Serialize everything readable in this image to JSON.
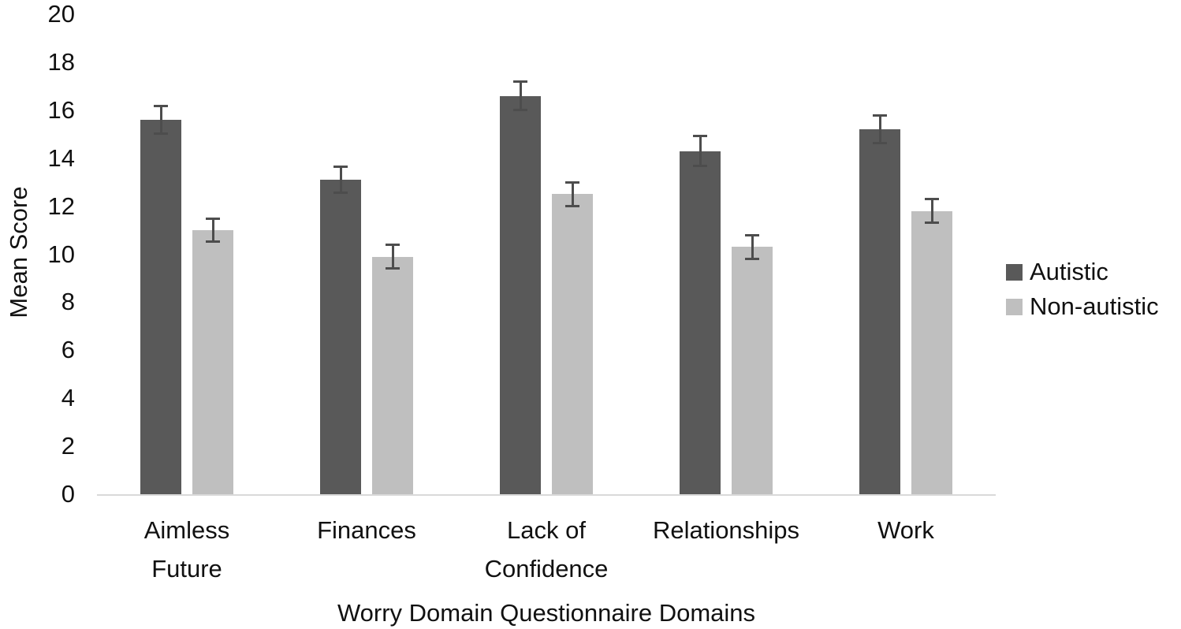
{
  "chart_data": {
    "type": "bar",
    "title": "",
    "xlabel": "Worry Domain Questionnaire Domains",
    "ylabel": "Mean Score",
    "ylim": [
      0,
      20
    ],
    "yticks": [
      0,
      2,
      4,
      6,
      8,
      10,
      12,
      14,
      16,
      18,
      20
    ],
    "grid": false,
    "legend_position": "right",
    "categories": [
      "Aimless Future",
      "Finances",
      "Lack of Confidence",
      "Relationships",
      "Work"
    ],
    "category_label_lines": [
      [
        "Aimless",
        "Future"
      ],
      [
        "Finances"
      ],
      [
        "Lack of",
        "Confidence"
      ],
      [
        "Relationships"
      ],
      [
        "Work"
      ]
    ],
    "series": [
      {
        "name": "Autistic",
        "color": "#595959",
        "values": [
          15.6,
          13.1,
          16.6,
          14.3,
          15.2
        ],
        "error_bars": [
          0.6,
          0.55,
          0.6,
          0.65,
          0.6
        ]
      },
      {
        "name": "Non-autistic",
        "color": "#bfbfbf",
        "values": [
          11.0,
          9.9,
          12.5,
          10.3,
          11.8
        ],
        "error_bars": [
          0.5,
          0.5,
          0.5,
          0.5,
          0.5
        ]
      }
    ],
    "colors": {
      "error_bar": "#4d4d4d",
      "axis_line": "#d9d9d9",
      "text": "#111111",
      "background": "#ffffff"
    }
  }
}
